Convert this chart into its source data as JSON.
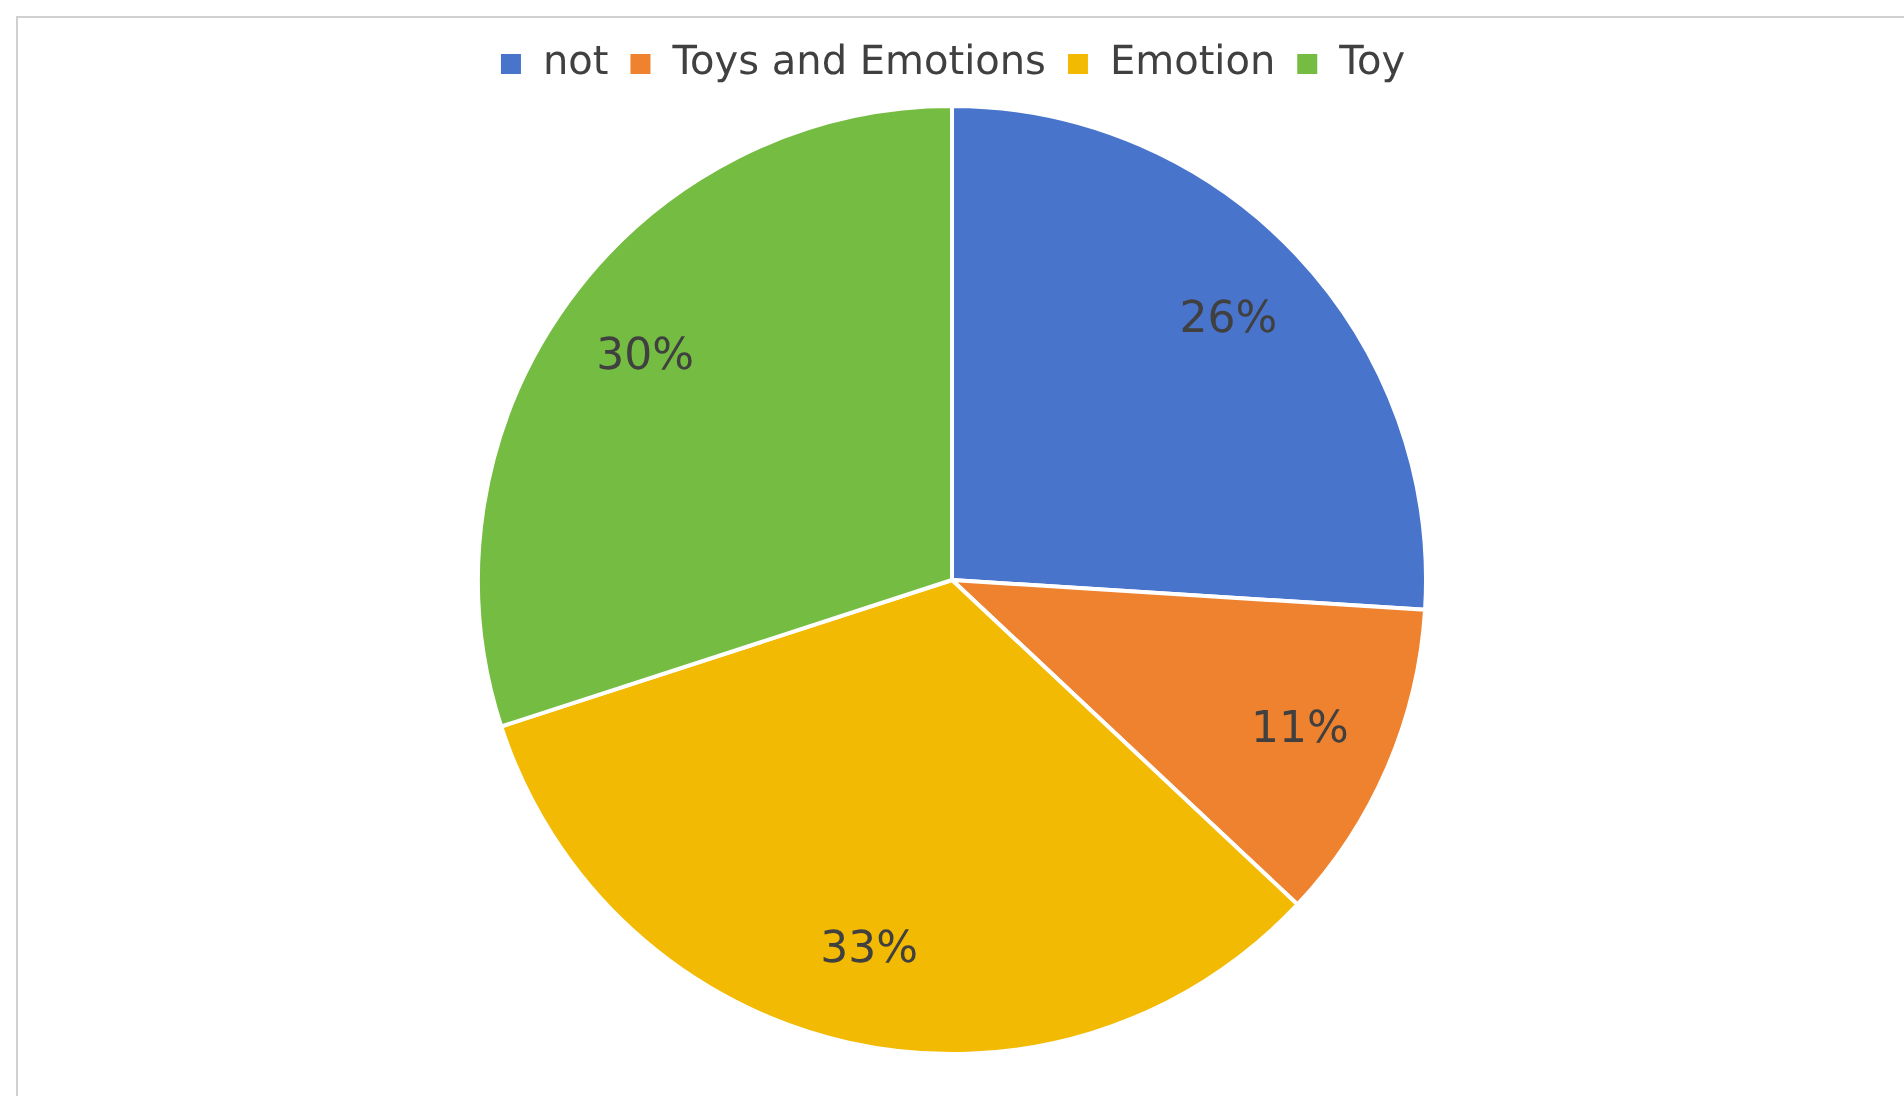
{
  "chart_data": {
    "type": "pie",
    "categories": [
      "not",
      "Toys and Emotions",
      "Emotion",
      "Toy"
    ],
    "values": [
      26,
      11,
      33,
      30
    ],
    "colors": [
      "#4874cb",
      "#ee822f",
      "#f2ba02",
      "#75bd42"
    ],
    "value_labels": [
      "26%",
      "11%",
      "33%",
      "30%"
    ],
    "legend": "top"
  }
}
